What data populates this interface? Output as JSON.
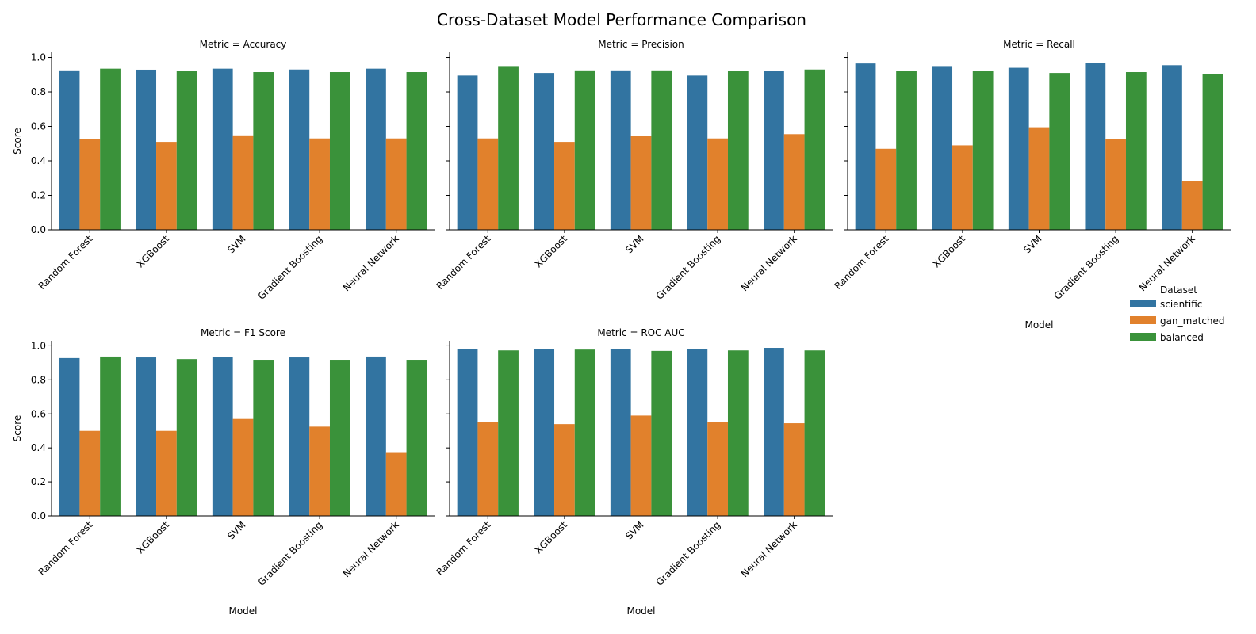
{
  "chart_data": {
    "type": "bar",
    "title": "Cross-Dataset Model Performance Comparison",
    "facet_prefix": "Metric = ",
    "xlabel": "Model",
    "ylabel": "Score",
    "ylim": [
      0,
      1.0
    ],
    "yticks": [
      "0.0",
      "0.2",
      "0.4",
      "0.6",
      "0.8",
      "1.0"
    ],
    "categories": [
      "Random Forest",
      "XGBoost",
      "SVM",
      "Gradient Boosting",
      "Neural Network"
    ],
    "legend": {
      "title": "Dataset",
      "placement": "right",
      "entries": [
        {
          "name": "scientific",
          "color": "#3274a1"
        },
        {
          "name": "gan_matched",
          "color": "#e1812c"
        },
        {
          "name": "balanced",
          "color": "#3a923a"
        }
      ]
    },
    "facets": [
      {
        "metric": "Accuracy",
        "series": [
          {
            "name": "scientific",
            "values": [
              0.925,
              0.929,
              0.935,
              0.93,
              0.935
            ]
          },
          {
            "name": "gan_matched",
            "values": [
              0.525,
              0.51,
              0.548,
              0.53,
              0.53
            ]
          },
          {
            "name": "balanced",
            "values": [
              0.935,
              0.92,
              0.915,
              0.915,
              0.915
            ]
          }
        ]
      },
      {
        "metric": "Precision",
        "series": [
          {
            "name": "scientific",
            "values": [
              0.895,
              0.91,
              0.925,
              0.895,
              0.92
            ]
          },
          {
            "name": "gan_matched",
            "values": [
              0.53,
              0.51,
              0.545,
              0.53,
              0.555
            ]
          },
          {
            "name": "balanced",
            "values": [
              0.95,
              0.925,
              0.925,
              0.92,
              0.93
            ]
          }
        ]
      },
      {
        "metric": "Recall",
        "series": [
          {
            "name": "scientific",
            "values": [
              0.965,
              0.95,
              0.94,
              0.968,
              0.955
            ]
          },
          {
            "name": "gan_matched",
            "values": [
              0.47,
              0.49,
              0.595,
              0.525,
              0.285
            ]
          },
          {
            "name": "balanced",
            "values": [
              0.92,
              0.92,
              0.91,
              0.915,
              0.905
            ]
          }
        ]
      },
      {
        "metric": "F1 Score",
        "series": [
          {
            "name": "scientific",
            "values": [
              0.928,
              0.932,
              0.933,
              0.932,
              0.937
            ]
          },
          {
            "name": "gan_matched",
            "values": [
              0.5,
              0.5,
              0.57,
              0.525,
              0.375
            ]
          },
          {
            "name": "balanced",
            "values": [
              0.937,
              0.922,
              0.918,
              0.918,
              0.918
            ]
          }
        ]
      },
      {
        "metric": "ROC AUC",
        "series": [
          {
            "name": "scientific",
            "values": [
              0.983,
              0.983,
              0.983,
              0.983,
              0.988
            ]
          },
          {
            "name": "gan_matched",
            "values": [
              0.55,
              0.54,
              0.59,
              0.55,
              0.545
            ]
          },
          {
            "name": "balanced",
            "values": [
              0.973,
              0.978,
              0.97,
              0.973,
              0.973
            ]
          }
        ]
      }
    ]
  }
}
